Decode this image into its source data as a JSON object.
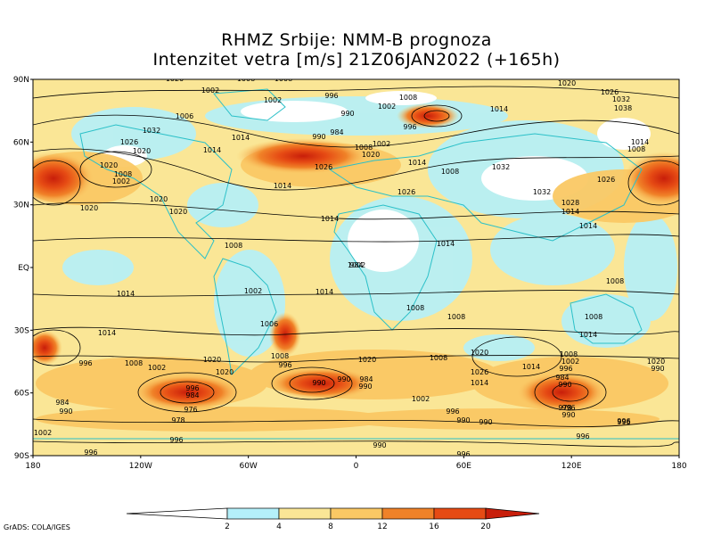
{
  "title": {
    "line1": "RHMZ Srbije: NMM-B prognoza",
    "line2": "Intenzitet vetra [m/s] 21Z06JAN2022 (+165h)"
  },
  "credit": "GrADS: COLA/IGES",
  "axes": {
    "lat_ticks": [
      "90N",
      "60N",
      "30N",
      "EQ",
      "30S",
      "60S",
      "90S"
    ],
    "lon_ticks": [
      "180",
      "120W",
      "60W",
      "0",
      "60E",
      "120E",
      "180"
    ]
  },
  "colorbar": {
    "labels": [
      "2",
      "4",
      "8",
      "12",
      "16",
      "20"
    ],
    "colors": [
      "#ffffff",
      "#b4f0fa",
      "#fae696",
      "#fac864",
      "#f08228",
      "#e64b14",
      "#c81e0a"
    ]
  },
  "pressure_labels": [
    {
      "t": "1020"
    },
    {
      "t": "1002"
    },
    {
      "t": "1008"
    },
    {
      "t": "1008"
    },
    {
      "t": "996"
    },
    {
      "t": "1002"
    },
    {
      "t": "1008"
    },
    {
      "t": "1020"
    },
    {
      "t": "1026"
    },
    {
      "t": "1032"
    },
    {
      "t": "1038"
    },
    {
      "t": "1006"
    },
    {
      "t": "1002"
    },
    {
      "t": "990"
    },
    {
      "t": "1014"
    },
    {
      "t": "996"
    },
    {
      "t": "1032"
    },
    {
      "t": "1014"
    },
    {
      "t": "984"
    },
    {
      "t": "990"
    },
    {
      "t": "1002"
    },
    {
      "t": "1008"
    },
    {
      "t": "1026"
    },
    {
      "t": "1020"
    },
    {
      "t": "1014"
    },
    {
      "t": "1020"
    },
    {
      "t": "1014"
    },
    {
      "t": "1020"
    },
    {
      "t": "1008"
    },
    {
      "t": "1002"
    },
    {
      "t": "1014"
    },
    {
      "t": "1008"
    },
    {
      "t": "1014"
    },
    {
      "t": "1026"
    },
    {
      "t": "1032"
    },
    {
      "t": "1008"
    },
    {
      "t": "1032"
    },
    {
      "t": "1026"
    },
    {
      "t": "1028"
    },
    {
      "t": "1026"
    },
    {
      "t": "1020"
    },
    {
      "t": "1014"
    },
    {
      "t": "1020"
    },
    {
      "t": "1020"
    },
    {
      "t": "1014"
    },
    {
      "t": "1014"
    },
    {
      "t": "1014"
    },
    {
      "t": "1008"
    },
    {
      "t": "1002"
    },
    {
      "t": "1014"
    },
    {
      "t": "1008"
    },
    {
      "t": "1008"
    },
    {
      "t": "1014"
    },
    {
      "t": "1006"
    },
    {
      "t": "1008"
    },
    {
      "t": "1014"
    },
    {
      "t": "1014"
    },
    {
      "t": "1008"
    },
    {
      "t": "1014"
    },
    {
      "t": "996"
    },
    {
      "t": "1008"
    },
    {
      "t": "1002"
    },
    {
      "t": "1020"
    },
    {
      "t": "1008"
    },
    {
      "t": "996"
    },
    {
      "t": "1020"
    },
    {
      "t": "1008"
    },
    {
      "t": "1020"
    },
    {
      "t": "1026"
    },
    {
      "t": "1014"
    },
    {
      "t": "1008"
    },
    {
      "t": "1002"
    },
    {
      "t": "1020"
    },
    {
      "t": "1020"
    },
    {
      "t": "990"
    },
    {
      "t": "990"
    },
    {
      "t": "996"
    },
    {
      "t": "984"
    },
    {
      "t": "990"
    },
    {
      "t": "984"
    },
    {
      "t": "976"
    },
    {
      "t": "1002"
    },
    {
      "t": "996"
    },
    {
      "t": "990"
    },
    {
      "t": "990"
    },
    {
      "t": "984"
    },
    {
      "t": "990"
    },
    {
      "t": "996"
    },
    {
      "t": "990"
    },
    {
      "t": "978"
    },
    {
      "t": "996"
    },
    {
      "t": "978"
    },
    {
      "t": "984"
    },
    {
      "t": "990"
    },
    {
      "t": "1002"
    },
    {
      "t": "996"
    },
    {
      "t": "990"
    },
    {
      "t": "996"
    },
    {
      "t": "996"
    },
    {
      "t": "996"
    },
    {
      "t": "996"
    },
    {
      "t": "990"
    },
    {
      "t": "996"
    },
    {
      "t": "984"
    },
    {
      "t": "1002"
    }
  ]
}
